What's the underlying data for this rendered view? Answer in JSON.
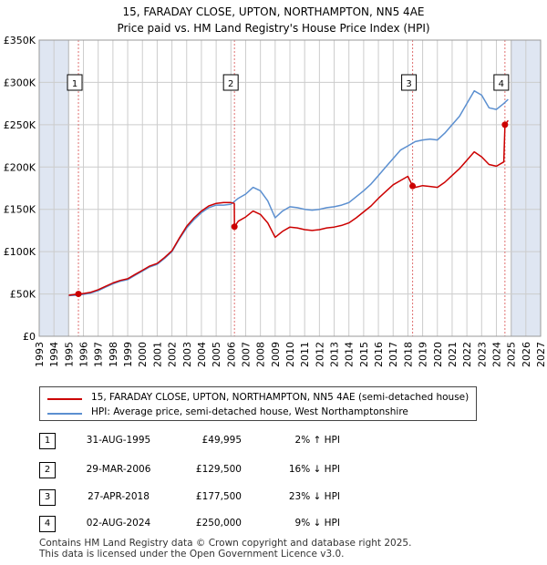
{
  "title_line1": "15, FARADAY CLOSE, UPTON, NORTHAMPTON, NN5 4AE",
  "title_line2": "Price paid vs. HM Land Registry's House Price Index (HPI)",
  "legend": {
    "price_paid_label": "15, FARADAY CLOSE, UPTON, NORTHAMPTON, NN5 4AE (semi-detached house)",
    "hpi_label": "HPI: Average price, semi-detached house, West Northamptonshire"
  },
  "colors": {
    "price_paid": "#cc0000",
    "hpi": "#5b8fd0",
    "shade": "#dfe6f2",
    "grid": "#cccccc",
    "marker_line": "#e07070"
  },
  "transactions": [
    {
      "num": "1",
      "date": "31-AUG-1995",
      "price": "£49,995",
      "hpi": "2% ↑ HPI"
    },
    {
      "num": "2",
      "date": "29-MAR-2006",
      "price": "£129,500",
      "hpi": "16% ↓ HPI"
    },
    {
      "num": "3",
      "date": "27-APR-2018",
      "price": "£177,500",
      "hpi": "23% ↓ HPI"
    },
    {
      "num": "4",
      "date": "02-AUG-2024",
      "price": "£250,000",
      "hpi": "9% ↓ HPI"
    }
  ],
  "footer_line1": "Contains HM Land Registry data © Crown copyright and database right 2025.",
  "footer_line2": "This data is licensed under the Open Government Licence v3.0.",
  "chart_data": {
    "type": "line",
    "title": "15, FARADAY CLOSE, UPTON, NORTHAMPTON, NN5 4AE",
    "subtitle": "Price paid vs. HM Land Registry's House Price Index (HPI)",
    "xlabel": "",
    "ylabel": "",
    "xlim": [
      1993,
      2027
    ],
    "ylim": [
      0,
      350000
    ],
    "x_ticks": [
      "1993",
      "1994",
      "1995",
      "1996",
      "1997",
      "1998",
      "1999",
      "2000",
      "2001",
      "2002",
      "2003",
      "2004",
      "2005",
      "2006",
      "2007",
      "2008",
      "2009",
      "2010",
      "2011",
      "2012",
      "2013",
      "2014",
      "2015",
      "2016",
      "2017",
      "2018",
      "2019",
      "2020",
      "2021",
      "2022",
      "2023",
      "2024",
      "2025",
      "2026",
      "2027"
    ],
    "y_ticks": [
      {
        "value": 0,
        "label": "£0"
      },
      {
        "value": 50000,
        "label": "£50K"
      },
      {
        "value": 100000,
        "label": "£100K"
      },
      {
        "value": 150000,
        "label": "£150K"
      },
      {
        "value": 200000,
        "label": "£200K"
      },
      {
        "value": 250000,
        "label": "£250K"
      },
      {
        "value": 300000,
        "label": "£300K"
      },
      {
        "value": 350000,
        "label": "£350K"
      }
    ],
    "shaded_before": 1995.0,
    "shaded_after": 2025.0,
    "grid": true,
    "series": [
      {
        "name": "HPI: Average price, semi-detached house, West Northamptonshire",
        "x": [
          1995.0,
          1995.5,
          1996.0,
          1996.5,
          1997.0,
          1997.5,
          1998.0,
          1998.5,
          1999.0,
          1999.5,
          2000.0,
          2000.5,
          2001.0,
          2001.5,
          2002.0,
          2002.5,
          2003.0,
          2003.5,
          2004.0,
          2004.5,
          2005.0,
          2005.5,
          2006.0,
          2006.5,
          2007.0,
          2007.5,
          2008.0,
          2008.5,
          2009.0,
          2009.5,
          2010.0,
          2010.5,
          2011.0,
          2011.5,
          2012.0,
          2012.5,
          2013.0,
          2013.5,
          2014.0,
          2014.5,
          2015.0,
          2015.5,
          2016.0,
          2016.5,
          2017.0,
          2017.5,
          2018.0,
          2018.5,
          2019.0,
          2019.5,
          2020.0,
          2020.5,
          2021.0,
          2021.5,
          2022.0,
          2022.5,
          2023.0,
          2023.5,
          2024.0,
          2024.5,
          2024.8
        ],
        "values": [
          48000,
          48500,
          49500,
          51000,
          54000,
          58000,
          62000,
          65000,
          67000,
          72000,
          77000,
          82000,
          85000,
          92000,
          100000,
          115000,
          128000,
          138000,
          146000,
          152000,
          155000,
          155000,
          156000,
          163000,
          168000,
          176000,
          172000,
          160000,
          140000,
          148000,
          153000,
          152000,
          150000,
          149000,
          150000,
          152000,
          153000,
          155000,
          158000,
          165000,
          172000,
          180000,
          190000,
          200000,
          210000,
          220000,
          225000,
          230000,
          232000,
          233000,
          232000,
          240000,
          250000,
          260000,
          275000,
          290000,
          285000,
          270000,
          268000,
          275000,
          280000
        ]
      },
      {
        "name": "15, FARADAY CLOSE, UPTON, NORTHAMPTON, NN5 4AE (semi-detached house)",
        "x": [
          1995.0,
          1995.66,
          1996.0,
          1996.5,
          1997.0,
          1997.5,
          1998.0,
          1998.5,
          1999.0,
          1999.5,
          2000.0,
          2000.5,
          2001.0,
          2001.5,
          2002.0,
          2002.5,
          2003.0,
          2003.5,
          2004.0,
          2004.5,
          2005.0,
          2005.5,
          2006.0,
          2006.23,
          2006.24,
          2006.5,
          2007.0,
          2007.5,
          2008.0,
          2008.5,
          2009.0,
          2009.5,
          2010.0,
          2010.5,
          2011.0,
          2011.5,
          2012.0,
          2012.5,
          2013.0,
          2013.5,
          2014.0,
          2014.5,
          2015.0,
          2015.5,
          2016.0,
          2016.5,
          2017.0,
          2017.5,
          2018.0,
          2018.32,
          2018.5,
          2019.0,
          2019.5,
          2020.0,
          2020.5,
          2021.0,
          2021.5,
          2022.0,
          2022.5,
          2023.0,
          2023.5,
          2024.0,
          2024.5,
          2024.58,
          2024.8
        ],
        "values": [
          48500,
          49995,
          50500,
          52000,
          55000,
          59000,
          63000,
          66000,
          68000,
          73000,
          78000,
          83000,
          86000,
          93000,
          101000,
          116000,
          130000,
          140000,
          148000,
          154000,
          157000,
          158000,
          158000,
          157000,
          129500,
          136000,
          141000,
          148000,
          144000,
          134000,
          117000,
          124000,
          129000,
          128000,
          126000,
          125000,
          126000,
          128000,
          129000,
          131000,
          134000,
          140000,
          147000,
          154000,
          163000,
          171000,
          179000,
          184000,
          189000,
          177500,
          176000,
          178000,
          177000,
          176000,
          182000,
          190000,
          198000,
          208000,
          218000,
          212000,
          203000,
          201000,
          206000,
          250000,
          255000
        ]
      }
    ],
    "annotations": [
      {
        "label": "1",
        "x": 1995.66,
        "value": 49995
      },
      {
        "label": "2",
        "x": 2006.24,
        "value": 129500
      },
      {
        "label": "3",
        "x": 2018.32,
        "value": 177500
      },
      {
        "label": "4",
        "x": 2024.58,
        "value": 250000
      }
    ]
  }
}
